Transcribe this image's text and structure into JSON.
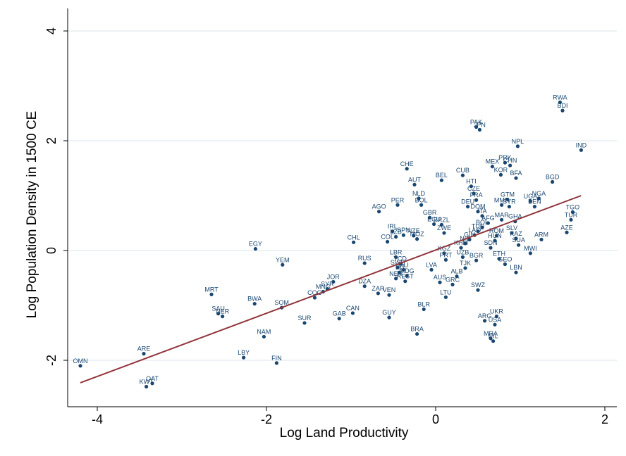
{
  "chart_data": {
    "type": "scatter",
    "xlabel": "Log Land Productivity",
    "ylabel": "Log Population Density in 1500 CE",
    "xlim": [
      -4.3,
      2.25
    ],
    "ylim": [
      -2.75,
      4.35
    ],
    "xticks": [
      -4,
      -2,
      0,
      2
    ],
    "yticks": [
      -2,
      0,
      2,
      4
    ],
    "xtick_labels": [
      "-4",
      "-2",
      "0",
      "2"
    ],
    "ytick_labels": [
      "-2",
      "0",
      "2",
      "4"
    ],
    "grid": "horizontal",
    "legend": "none",
    "colors": {
      "points": "#1a476f",
      "fit_line": "#90353b",
      "grid": "#d9e6eb",
      "background": "#ffffff"
    },
    "fit_line": {
      "x": [
        -4.2,
        1.72
      ],
      "y": [
        -2.41,
        1.0
      ]
    },
    "points": [
      {
        "label": "OMN",
        "x": -4.2,
        "y": -2.1
      },
      {
        "label": "ARE",
        "x": -3.45,
        "y": -1.88
      },
      {
        "label": "KWT",
        "x": -3.42,
        "y": -2.48
      },
      {
        "label": "QAT",
        "x": -3.35,
        "y": -2.42
      },
      {
        "label": "MRT",
        "x": -2.65,
        "y": -0.8
      },
      {
        "label": "SAU",
        "x": -2.57,
        "y": -1.15
      },
      {
        "label": "NER",
        "x": -2.52,
        "y": -1.2
      },
      {
        "label": "LBY",
        "x": -2.27,
        "y": -1.95
      },
      {
        "label": "EGY",
        "x": -2.13,
        "y": 0.03
      },
      {
        "label": "BWA",
        "x": -2.14,
        "y": -0.97
      },
      {
        "label": "NAM",
        "x": -2.03,
        "y": -1.57
      },
      {
        "label": "SOM",
        "x": -1.82,
        "y": -1.04
      },
      {
        "label": "YEM",
        "x": -1.81,
        "y": -0.26
      },
      {
        "label": "FIN",
        "x": -1.88,
        "y": -2.05
      },
      {
        "label": "SUR",
        "x": -1.55,
        "y": -1.32
      },
      {
        "label": "COG",
        "x": -1.43,
        "y": -0.86
      },
      {
        "label": "MNG",
        "x": -1.33,
        "y": -0.75
      },
      {
        "label": "SYR",
        "x": -1.28,
        "y": -0.7
      },
      {
        "label": "JOR",
        "x": -1.21,
        "y": -0.57
      },
      {
        "label": "GAB",
        "x": -1.14,
        "y": -1.24
      },
      {
        "label": "CAN",
        "x": -0.98,
        "y": -1.14
      },
      {
        "label": "CHL",
        "x": -0.97,
        "y": 0.15
      },
      {
        "label": "RUS",
        "x": -0.84,
        "y": -0.23
      },
      {
        "label": "DZA",
        "x": -0.84,
        "y": -0.65
      },
      {
        "label": "ZAR",
        "x": -0.68,
        "y": -0.78
      },
      {
        "label": "VEN",
        "x": -0.55,
        "y": -0.81
      },
      {
        "label": "NER",
        "x": -0.47,
        "y": -0.51
      },
      {
        "label": "AGO",
        "x": -0.67,
        "y": 0.71
      },
      {
        "label": "CHE",
        "x": -0.34,
        "y": 1.49
      },
      {
        "label": "PER",
        "x": -0.45,
        "y": 0.83
      },
      {
        "label": "IRL",
        "x": -0.51,
        "y": 0.35
      },
      {
        "label": "SPN",
        "x": -0.38,
        "y": 0.28
      },
      {
        "label": "LZB",
        "x": -0.47,
        "y": 0.25
      },
      {
        "label": "COL",
        "x": -0.57,
        "y": 0.16
      },
      {
        "label": "NZE",
        "x": -0.26,
        "y": 0.27
      },
      {
        "label": "MOZ",
        "x": -0.22,
        "y": 0.21
      },
      {
        "label": "LBR",
        "x": -0.47,
        "y": -0.12
      },
      {
        "label": "TCD",
        "x": -0.42,
        "y": -0.24
      },
      {
        "label": "SWE",
        "x": -0.45,
        "y": -0.31
      },
      {
        "label": "MLI",
        "x": -0.38,
        "y": -0.35
      },
      {
        "label": "TKI",
        "x": -0.43,
        "y": -0.4
      },
      {
        "label": "MDG",
        "x": -0.34,
        "y": -0.46
      },
      {
        "label": "REST",
        "x": -0.36,
        "y": -0.56
      },
      {
        "label": "GUY",
        "x": -0.55,
        "y": -1.22
      },
      {
        "label": "BLR",
        "x": -0.14,
        "y": -1.07
      },
      {
        "label": "BRA",
        "x": -0.22,
        "y": -1.52
      },
      {
        "label": "AUT",
        "x": -0.25,
        "y": 1.2
      },
      {
        "label": "BEL",
        "x": 0.07,
        "y": 1.28
      },
      {
        "label": "NLD",
        "x": -0.2,
        "y": 0.95
      },
      {
        "label": "BOL",
        "x": -0.17,
        "y": 0.83
      },
      {
        "label": "GBR",
        "x": -0.07,
        "y": 0.6
      },
      {
        "label": "ECU",
        "x": -0.02,
        "y": 0.48
      },
      {
        "label": "BRZL",
        "x": 0.07,
        "y": 0.47
      },
      {
        "label": "ZWE",
        "x": 0.1,
        "y": 0.32
      },
      {
        "label": "CUB",
        "x": 0.32,
        "y": 1.37
      },
      {
        "label": "HTI",
        "x": 0.42,
        "y": 1.17
      },
      {
        "label": "CZE",
        "x": 0.45,
        "y": 1.04
      },
      {
        "label": "FRA",
        "x": 0.48,
        "y": 0.92
      },
      {
        "label": "DEU",
        "x": 0.38,
        "y": 0.8
      },
      {
        "label": "DOM",
        "x": 0.5,
        "y": 0.71
      },
      {
        "label": "ITA",
        "x": 0.55,
        "y": 0.63
      },
      {
        "label": "AFG",
        "x": 0.62,
        "y": 0.5
      },
      {
        "label": "BOL",
        "x": 0.55,
        "y": 0.42
      },
      {
        "label": "TUN",
        "x": 0.5,
        "y": 0.35
      },
      {
        "label": "LAO",
        "x": 0.46,
        "y": 0.28
      },
      {
        "label": "GIN",
        "x": 0.4,
        "y": 0.2
      },
      {
        "label": "NIC",
        "x": 0.35,
        "y": 0.13
      },
      {
        "label": "KHM",
        "x": 0.3,
        "y": 0.05
      },
      {
        "label": "PAK",
        "x": 0.48,
        "y": 2.25
      },
      {
        "label": "JPN",
        "x": 0.52,
        "y": 2.2
      },
      {
        "label": "MEX",
        "x": 0.67,
        "y": 1.53
      },
      {
        "label": "KOR",
        "x": 0.77,
        "y": 1.38
      },
      {
        "label": "PRK",
        "x": 0.82,
        "y": 1.6
      },
      {
        "label": "CHN",
        "x": 0.88,
        "y": 1.55
      },
      {
        "label": "BFA",
        "x": 0.95,
        "y": 1.32
      },
      {
        "label": "NPL",
        "x": 0.97,
        "y": 1.9
      },
      {
        "label": "GTM",
        "x": 0.85,
        "y": 0.93
      },
      {
        "label": "MMR",
        "x": 0.78,
        "y": 0.83
      },
      {
        "label": "SYR",
        "x": 0.87,
        "y": 0.8
      },
      {
        "label": "MAR",
        "x": 0.78,
        "y": 0.56
      },
      {
        "label": "GHA",
        "x": 0.94,
        "y": 0.53
      },
      {
        "label": "ROM",
        "x": 0.72,
        "y": 0.27
      },
      {
        "label": "HUN",
        "x": 0.7,
        "y": 0.18
      },
      {
        "label": "SLV",
        "x": 0.9,
        "y": 0.32
      },
      {
        "label": "KAZ",
        "x": 0.95,
        "y": 0.22
      },
      {
        "label": "SUA",
        "x": 0.98,
        "y": 0.1
      },
      {
        "label": "BGD",
        "x": 1.38,
        "y": 1.25
      },
      {
        "label": "UGA",
        "x": 1.12,
        "y": 0.9
      },
      {
        "label": "NGA",
        "x": 1.22,
        "y": 0.95
      },
      {
        "label": "BEN",
        "x": 1.17,
        "y": 0.8
      },
      {
        "label": "ARM",
        "x": 1.25,
        "y": 0.2
      },
      {
        "label": "MWI",
        "x": 1.12,
        "y": -0.05
      },
      {
        "label": "TGO",
        "x": 1.62,
        "y": 0.7
      },
      {
        "label": "TUR",
        "x": 1.6,
        "y": 0.56
      },
      {
        "label": "AZE",
        "x": 1.55,
        "y": 0.33
      },
      {
        "label": "RWA",
        "x": 1.47,
        "y": 2.7
      },
      {
        "label": "BDI",
        "x": 1.5,
        "y": 2.55
      },
      {
        "label": "IND",
        "x": 1.72,
        "y": 1.83
      },
      {
        "label": "ETH",
        "x": 0.75,
        "y": -0.15
      },
      {
        "label": "GEO",
        "x": 0.82,
        "y": -0.25
      },
      {
        "label": "SDN",
        "x": 0.65,
        "y": 0.05
      },
      {
        "label": "LBN",
        "x": 0.95,
        "y": -0.4
      },
      {
        "label": "KGZ",
        "x": 0.1,
        "y": -0.05
      },
      {
        "label": "PRT",
        "x": 0.12,
        "y": -0.17
      },
      {
        "label": "UZB",
        "x": 0.32,
        "y": -0.12
      },
      {
        "label": "LVA",
        "x": -0.05,
        "y": -0.35
      },
      {
        "label": "BGR",
        "x": 0.48,
        "y": -0.18
      },
      {
        "label": "TJK",
        "x": 0.35,
        "y": -0.32
      },
      {
        "label": "ALB",
        "x": 0.25,
        "y": -0.47
      },
      {
        "label": "AUS",
        "x": 0.05,
        "y": -0.58
      },
      {
        "label": "GRC",
        "x": 0.2,
        "y": -0.62
      },
      {
        "label": "LTU",
        "x": 0.12,
        "y": -0.85
      },
      {
        "label": "SWZ",
        "x": 0.5,
        "y": -0.72
      },
      {
        "label": "ARG",
        "x": 0.58,
        "y": -1.28
      },
      {
        "label": "UKR",
        "x": 0.72,
        "y": -1.2
      },
      {
        "label": "USA",
        "x": 0.7,
        "y": -1.35
      },
      {
        "label": "MRA",
        "x": 0.65,
        "y": -1.6
      },
      {
        "label": "IRL",
        "x": 0.68,
        "y": -1.65
      }
    ]
  }
}
